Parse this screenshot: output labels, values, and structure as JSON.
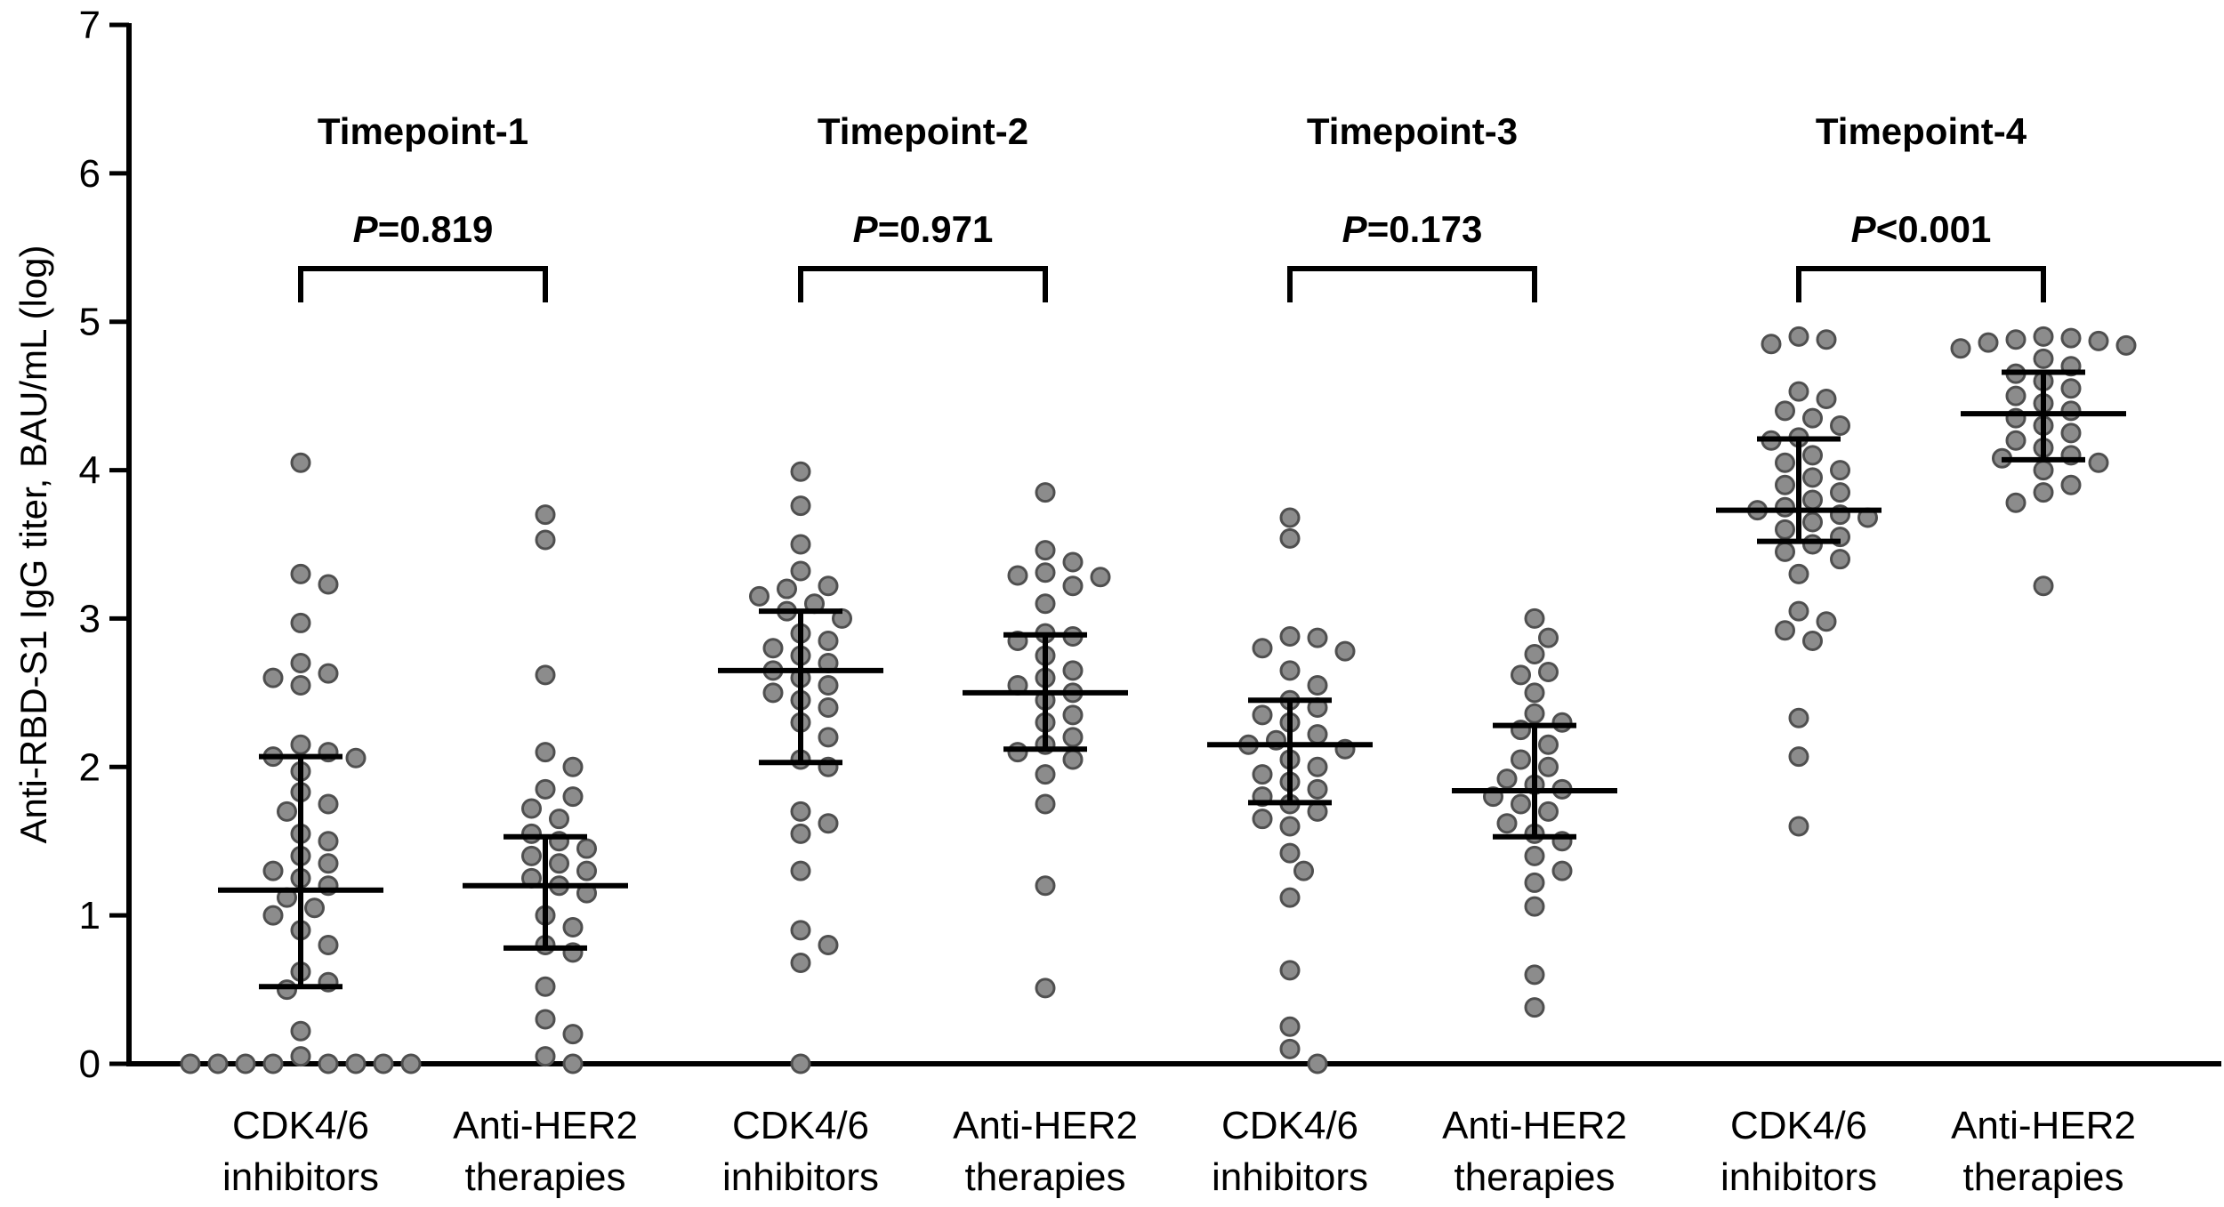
{
  "chart_data": {
    "type": "scatter",
    "ylabel": "Anti-RBD-S1 IgG titer, BAU/mL (log)",
    "xlabel": "",
    "ylim": [
      0,
      7
    ],
    "yticks": [
      "0",
      "1",
      "2",
      "3",
      "4",
      "5",
      "6",
      "7"
    ],
    "grid": false,
    "legend": "none",
    "colors": {
      "dot_fill": "#8c8c8c",
      "dot_edge": "#4f4f4f",
      "lines": "#000000"
    },
    "timepoints": [
      {
        "title": "Timepoint-1",
        "p_label": "P",
        "p_rest": "=0.819",
        "groups": [
          {
            "label_line1": "CDK4/6",
            "label_line2": "inhibitors",
            "median": 1.17,
            "q1": 0.52,
            "q3": 2.07,
            "values": [
              4.05,
              3.3,
              3.23,
              2.97,
              2.7,
              2.63,
              2.6,
              2.55,
              2.15,
              2.1,
              2.07,
              2.06,
              1.97,
              1.83,
              1.75,
              1.7,
              1.55,
              1.5,
              1.4,
              1.35,
              1.3,
              1.25,
              1.2,
              1.12,
              1.05,
              1.0,
              0.9,
              0.8,
              0.62,
              0.55,
              0.5,
              0.22,
              0.05,
              0.0,
              0.0,
              0.0,
              0.0,
              0.0,
              0.0,
              0.0,
              0.0
            ]
          },
          {
            "label_line1": "Anti-HER2",
            "label_line2": "therapies",
            "median": 1.2,
            "q1": 0.78,
            "q3": 1.53,
            "values": [
              3.7,
              3.53,
              2.62,
              2.1,
              2.0,
              1.85,
              1.8,
              1.72,
              1.65,
              1.55,
              1.5,
              1.45,
              1.4,
              1.35,
              1.3,
              1.25,
              1.2,
              1.15,
              1.0,
              0.92,
              0.8,
              0.75,
              0.52,
              0.3,
              0.2,
              0.05,
              0.0
            ]
          }
        ]
      },
      {
        "title": "Timepoint-2",
        "p_label": "P",
        "p_rest": "=0.971",
        "groups": [
          {
            "label_line1": "CDK4/6",
            "label_line2": "inhibitors",
            "median": 2.65,
            "q1": 2.03,
            "q3": 3.05,
            "values": [
              3.99,
              3.76,
              3.5,
              3.32,
              3.22,
              3.2,
              3.15,
              3.1,
              3.05,
              3.0,
              2.9,
              2.85,
              2.8,
              2.75,
              2.7,
              2.65,
              2.6,
              2.55,
              2.5,
              2.45,
              2.4,
              2.3,
              2.2,
              2.05,
              2.0,
              1.7,
              1.62,
              1.55,
              1.3,
              0.9,
              0.8,
              0.68,
              0.0
            ]
          },
          {
            "label_line1": "Anti-HER2",
            "label_line2": "therapies",
            "median": 2.5,
            "q1": 2.12,
            "q3": 2.89,
            "values": [
              3.85,
              3.46,
              3.38,
              3.31,
              3.29,
              3.28,
              3.22,
              3.1,
              2.9,
              2.88,
              2.85,
              2.75,
              2.65,
              2.6,
              2.55,
              2.5,
              2.45,
              2.35,
              2.3,
              2.2,
              2.15,
              2.1,
              2.05,
              1.95,
              1.75,
              1.2,
              0.51
            ]
          }
        ]
      },
      {
        "title": "Timepoint-3",
        "p_label": "P",
        "p_rest": "=0.173",
        "groups": [
          {
            "label_line1": "CDK4/6",
            "label_line2": "inhibitors",
            "median": 2.15,
            "q1": 1.76,
            "q3": 2.45,
            "values": [
              3.68,
              3.54,
              2.88,
              2.87,
              2.8,
              2.78,
              2.65,
              2.55,
              2.45,
              2.4,
              2.35,
              2.3,
              2.22,
              2.18,
              2.15,
              2.12,
              2.05,
              2.0,
              1.95,
              1.9,
              1.85,
              1.8,
              1.75,
              1.7,
              1.65,
              1.6,
              1.42,
              1.3,
              1.12,
              0.63,
              0.25,
              0.1,
              0.0
            ]
          },
          {
            "label_line1": "Anti-HER2",
            "label_line2": "therapies",
            "median": 1.84,
            "q1": 1.53,
            "q3": 2.28,
            "values": [
              3.0,
              2.87,
              2.76,
              2.64,
              2.62,
              2.5,
              2.36,
              2.3,
              2.25,
              2.15,
              2.05,
              2.0,
              1.92,
              1.88,
              1.85,
              1.8,
              1.75,
              1.7,
              1.62,
              1.55,
              1.5,
              1.4,
              1.3,
              1.22,
              1.06,
              0.6,
              0.38
            ]
          }
        ]
      },
      {
        "title": "Timepoint-4",
        "p_label": "P",
        "p_rest": "<0.001",
        "groups": [
          {
            "label_line1": "CDK4/6",
            "label_line2": "inhibitors",
            "median": 3.73,
            "q1": 3.52,
            "q3": 4.21,
            "values": [
              4.9,
              4.88,
              4.85,
              4.53,
              4.48,
              4.4,
              4.35,
              4.3,
              4.22,
              4.2,
              4.1,
              4.05,
              4.0,
              3.95,
              3.9,
              3.85,
              3.8,
              3.75,
              3.73,
              3.7,
              3.68,
              3.65,
              3.6,
              3.55,
              3.5,
              3.45,
              3.4,
              3.3,
              3.05,
              2.98,
              2.92,
              2.85,
              2.33,
              2.07,
              1.6
            ]
          },
          {
            "label_line1": "Anti-HER2",
            "label_line2": "therapies",
            "median": 4.38,
            "q1": 4.07,
            "q3": 4.66,
            "values": [
              4.9,
              4.89,
              4.88,
              4.87,
              4.86,
              4.84,
              4.82,
              4.75,
              4.7,
              4.65,
              4.6,
              4.55,
              4.5,
              4.45,
              4.4,
              4.35,
              4.3,
              4.25,
              4.2,
              4.15,
              4.1,
              4.08,
              4.05,
              4.0,
              3.9,
              3.85,
              3.78,
              3.22
            ]
          }
        ]
      }
    ]
  }
}
